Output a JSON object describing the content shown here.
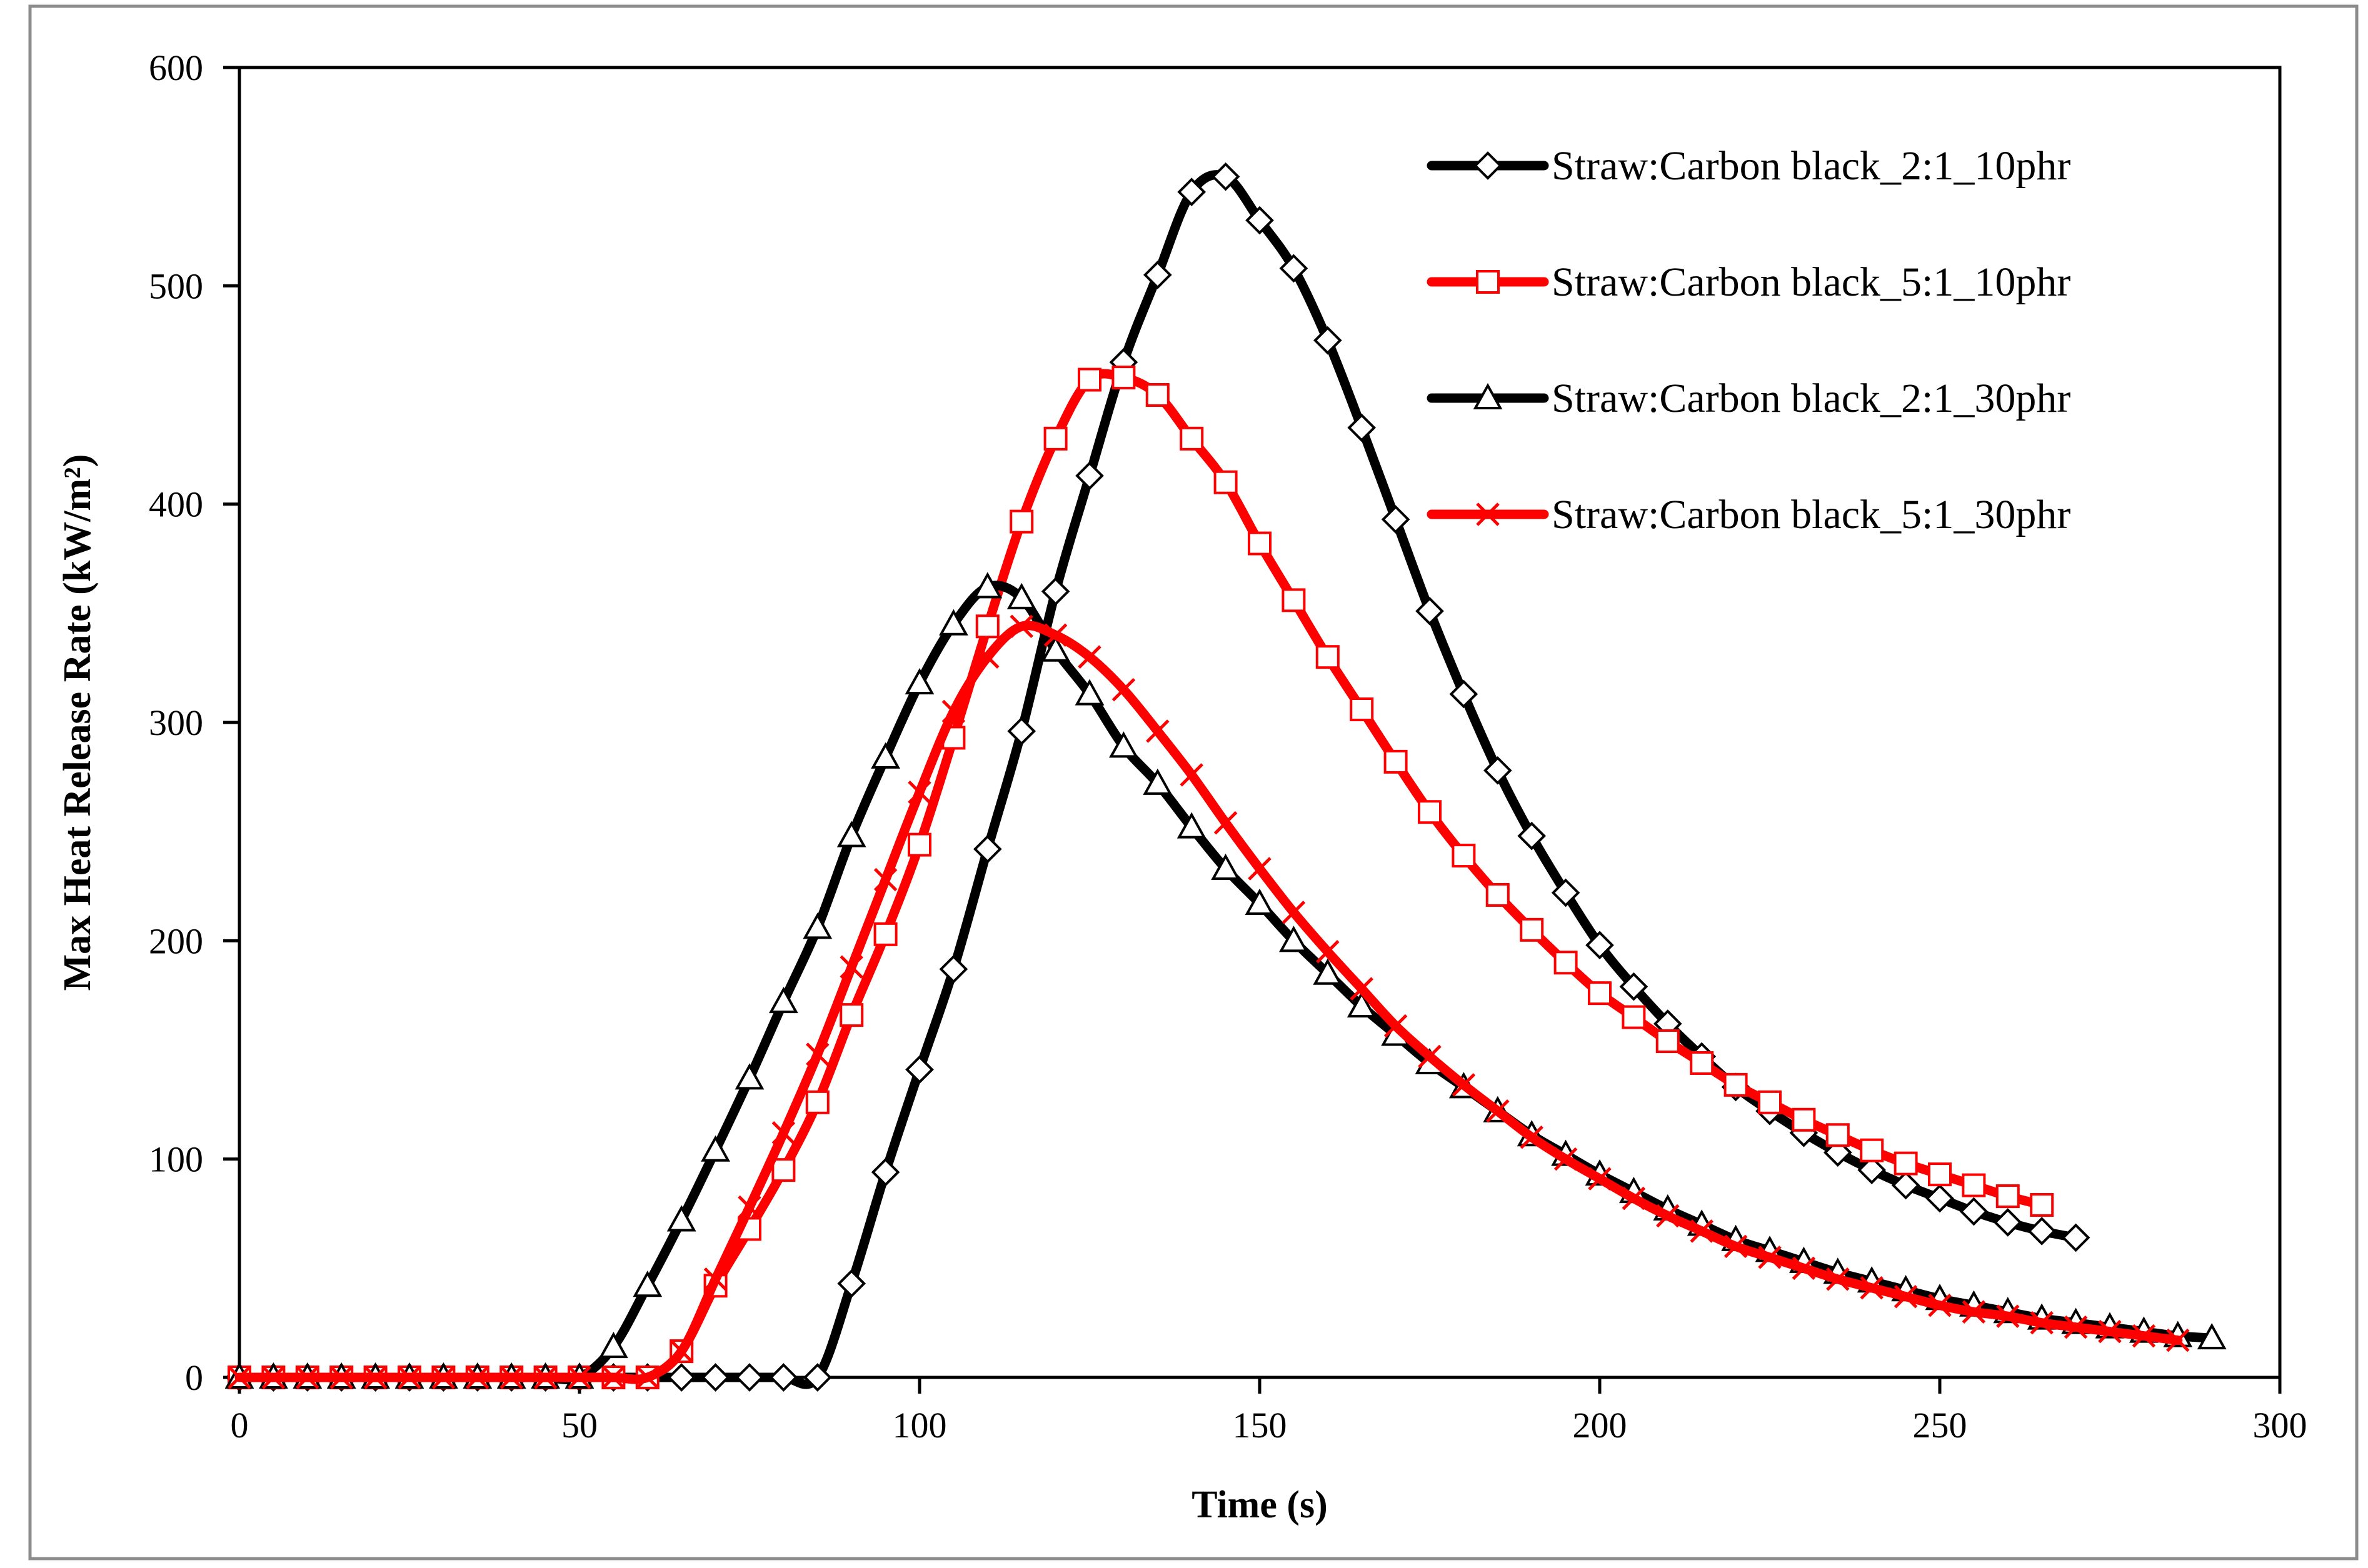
{
  "chart_data": {
    "type": "line",
    "title": "",
    "xlabel": "Time (s)",
    "ylabel": "Max Heat Release Rate (kW/m²)",
    "xlim": [
      0,
      300
    ],
    "ylim": [
      0,
      600
    ],
    "xticks": [
      "0",
      "50",
      "100",
      "150",
      "200",
      "250",
      "300"
    ],
    "yticks": [
      "0",
      "100",
      "200",
      "300",
      "400",
      "500",
      "600"
    ],
    "grid": false,
    "legend_position": "top-right",
    "series": [
      {
        "name": "Straw:Carbon black_2:1_10phr",
        "color": "#000000",
        "marker": "diamond",
        "x": [
          0,
          5,
          10,
          15,
          20,
          25,
          30,
          35,
          40,
          45,
          50,
          55,
          60,
          65,
          70,
          75,
          80,
          85,
          90,
          95,
          100,
          105,
          110,
          115,
          120,
          125,
          130,
          135,
          140,
          145,
          150,
          155,
          160,
          165,
          170,
          175,
          180,
          185,
          190,
          195,
          200,
          205,
          210,
          215,
          220,
          225,
          230,
          235,
          240,
          245,
          250,
          255,
          260,
          265,
          270
        ],
        "y": [
          0,
          0,
          0,
          0,
          0,
          0,
          0,
          0,
          0,
          0,
          0,
          0,
          0,
          0,
          0,
          0,
          0,
          0,
          43,
          94,
          141,
          187,
          242,
          296,
          360,
          413,
          465,
          505,
          543,
          550,
          530,
          508,
          475,
          435,
          393,
          351,
          313,
          278,
          248,
          222,
          198,
          179,
          162,
          147,
          133,
          122,
          112,
          103,
          95,
          88,
          82,
          76,
          71,
          67,
          64
        ]
      },
      {
        "name": "Straw:Carbon black_5:1_10phr",
        "color": "#ff0000",
        "marker": "square",
        "x": [
          0,
          5,
          10,
          15,
          20,
          25,
          30,
          35,
          40,
          45,
          50,
          55,
          60,
          65,
          70,
          75,
          80,
          85,
          90,
          95,
          100,
          105,
          110,
          115,
          120,
          125,
          130,
          135,
          140,
          145,
          150,
          155,
          160,
          165,
          170,
          175,
          180,
          185,
          190,
          195,
          200,
          205,
          210,
          215,
          220,
          225,
          230,
          235,
          240,
          245,
          250,
          255,
          260,
          265
        ],
        "y": [
          0,
          0,
          0,
          0,
          0,
          0,
          0,
          0,
          0,
          0,
          0,
          0,
          0,
          12,
          42,
          68,
          95,
          126,
          166,
          203,
          244,
          293,
          344,
          392,
          430,
          457,
          458,
          450,
          430,
          410,
          382,
          356,
          330,
          306,
          282,
          259,
          239,
          221,
          205,
          190,
          176,
          165,
          154,
          144,
          134,
          126,
          118,
          111,
          104,
          98,
          93,
          88,
          83,
          79
        ]
      },
      {
        "name": "Straw:Carbon black_2:1_30phr",
        "color": "#000000",
        "marker": "triangle",
        "x": [
          0,
          5,
          10,
          15,
          20,
          25,
          30,
          35,
          40,
          45,
          50,
          55,
          60,
          65,
          70,
          75,
          80,
          85,
          90,
          95,
          100,
          105,
          110,
          115,
          120,
          125,
          130,
          135,
          140,
          145,
          150,
          155,
          160,
          165,
          170,
          175,
          180,
          185,
          190,
          195,
          200,
          205,
          210,
          215,
          220,
          225,
          230,
          235,
          240,
          245,
          250,
          255,
          260,
          265,
          270,
          275,
          280,
          285,
          290
        ],
        "y": [
          0,
          0,
          0,
          0,
          0,
          0,
          0,
          0,
          0,
          0,
          0,
          14,
          42,
          72,
          104,
          137,
          172,
          206,
          248,
          284,
          318,
          345,
          362,
          357,
          333,
          313,
          289,
          272,
          252,
          233,
          217,
          200,
          185,
          170,
          157,
          144,
          133,
          122,
          111,
          102,
          93,
          85,
          77,
          70,
          63,
          58,
          53,
          48,
          44,
          40,
          36,
          33,
          30,
          27,
          25,
          23,
          21,
          19,
          18
        ]
      },
      {
        "name": "Straw:Carbon black_5:1_30phr",
        "color": "#ff0000",
        "marker": "cross",
        "x": [
          0,
          5,
          10,
          15,
          20,
          25,
          30,
          35,
          40,
          45,
          50,
          55,
          60,
          65,
          70,
          75,
          80,
          85,
          90,
          95,
          100,
          105,
          110,
          115,
          120,
          125,
          130,
          135,
          140,
          145,
          150,
          155,
          160,
          165,
          170,
          175,
          180,
          185,
          190,
          195,
          200,
          205,
          210,
          215,
          220,
          225,
          230,
          235,
          240,
          245,
          250,
          255,
          260,
          265,
          270,
          275,
          280,
          285
        ],
        "y": [
          0,
          0,
          0,
          0,
          0,
          0,
          0,
          0,
          0,
          0,
          0,
          0,
          0,
          12,
          45,
          78,
          112,
          148,
          188,
          228,
          268,
          305,
          330,
          344,
          340,
          330,
          315,
          296,
          276,
          254,
          233,
          213,
          195,
          178,
          161,
          147,
          134,
          122,
          110,
          100,
          91,
          82,
          74,
          67,
          60,
          55,
          50,
          45,
          41,
          37,
          33,
          30,
          28,
          25,
          23,
          21,
          19,
          17
        ]
      }
    ]
  }
}
